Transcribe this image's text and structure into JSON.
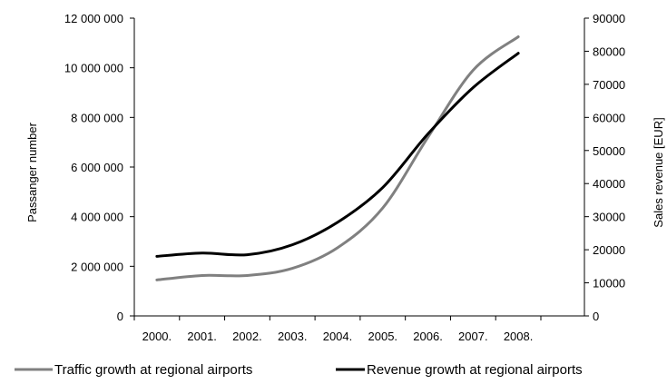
{
  "chart_data": {
    "type": "line",
    "categories": [
      "2000.",
      "2001.",
      "2002.",
      "2003.",
      "2004.",
      "2005.",
      "2006.",
      "2007.",
      "2008."
    ],
    "y_left": {
      "label": "Passanger number",
      "range": [
        0,
        12000000
      ],
      "ticks": [
        0,
        2000000,
        4000000,
        6000000,
        8000000,
        10000000,
        12000000
      ],
      "tick_labels": [
        "0",
        "2 000 000",
        "4 000 000",
        "6 000 000",
        "8 000 000",
        "10 000 000",
        "12 000 000"
      ]
    },
    "y_right": {
      "label": "Sales revenue [EUR]",
      "range": [
        0,
        90000
      ],
      "ticks": [
        0,
        10000,
        20000,
        30000,
        40000,
        50000,
        60000,
        70000,
        80000,
        90000
      ],
      "tick_labels": [
        "0",
        "10000",
        "20000",
        "30000",
        "40000",
        "50000",
        "60000",
        "70000",
        "80000",
        "90000"
      ]
    },
    "series": [
      {
        "name": "Traffic growth at regional airports",
        "axis": "left",
        "color": "#808080",
        "values": [
          1450000,
          1630000,
          1630000,
          1920000,
          2750000,
          4350000,
          7200000,
          9900000,
          11250000
        ]
      },
      {
        "name": "Revenue growth at regional airports",
        "axis": "right",
        "color": "#000000",
        "values": [
          18000,
          19000,
          18500,
          21500,
          28300,
          38800,
          55000,
          69000,
          79400
        ]
      }
    ],
    "grid": false,
    "legend_position": "bottom"
  }
}
